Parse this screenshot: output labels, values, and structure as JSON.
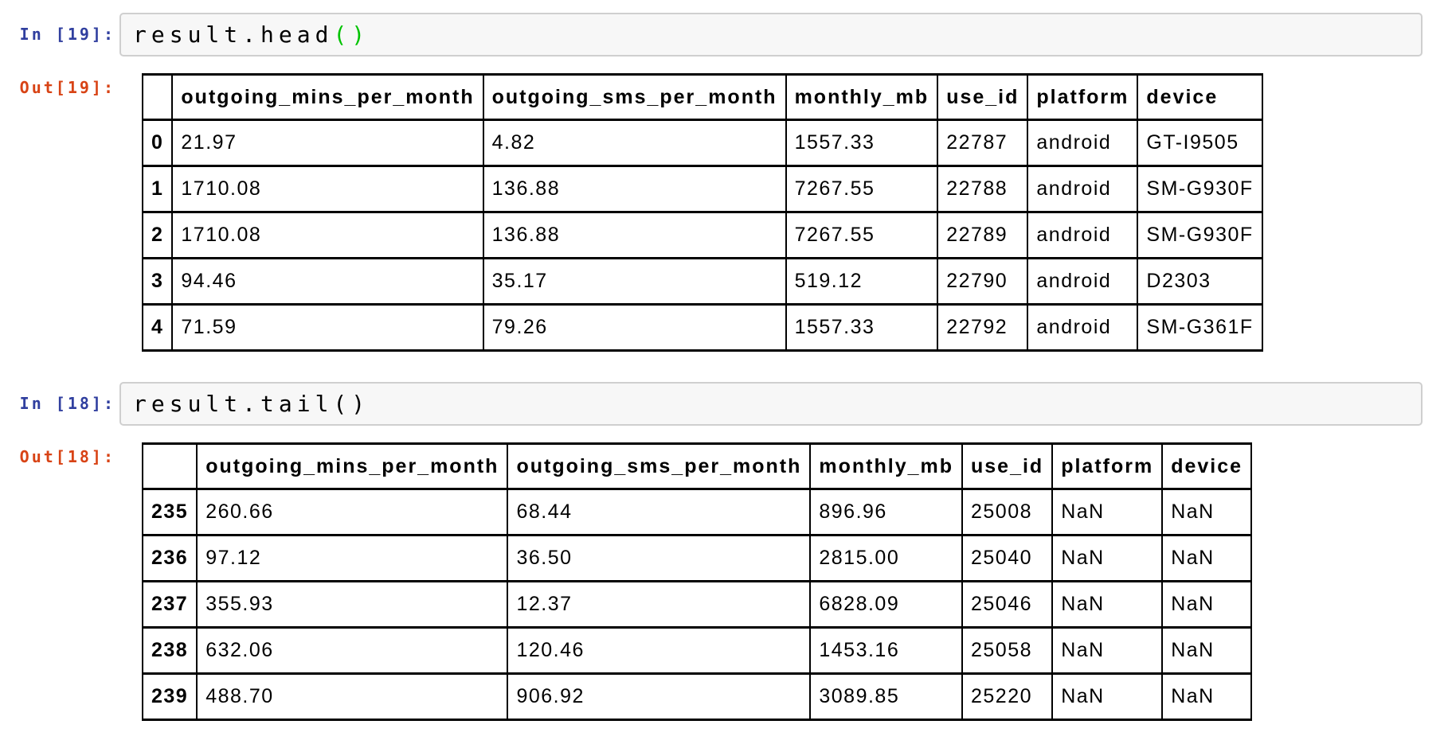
{
  "colors": {
    "in_prompt": "#303f9f",
    "out_prompt": "#d84315",
    "input_bg": "#f7f7f7",
    "input_border": "#cfcfcf",
    "table_border": "#000000",
    "code_text": "#000000",
    "matched_bracket_green": "#00c300"
  },
  "cells": [
    {
      "in_prompt": "In [19]:",
      "out_prompt": "Out[19]:",
      "code_segments": [
        {
          "text": "result.head",
          "color": "#000000"
        },
        {
          "text": "()",
          "color": "#00c300"
        }
      ],
      "table": {
        "columns": [
          "",
          "outgoing_mins_per_month",
          "outgoing_sms_per_month",
          "monthly_mb",
          "use_id",
          "platform",
          "device"
        ],
        "rows": [
          {
            "index": "0",
            "cells": [
              "21.97",
              "4.82",
              "1557.33",
              "22787",
              "android",
              "GT-I9505"
            ]
          },
          {
            "index": "1",
            "cells": [
              "1710.08",
              "136.88",
              "7267.55",
              "22788",
              "android",
              "SM-G930F"
            ]
          },
          {
            "index": "2",
            "cells": [
              "1710.08",
              "136.88",
              "7267.55",
              "22789",
              "android",
              "SM-G930F"
            ]
          },
          {
            "index": "3",
            "cells": [
              "94.46",
              "35.17",
              "519.12",
              "22790",
              "android",
              "D2303"
            ]
          },
          {
            "index": "4",
            "cells": [
              "71.59",
              "79.26",
              "1557.33",
              "22792",
              "android",
              "SM-G361F"
            ]
          }
        ]
      }
    },
    {
      "in_prompt": "In [18]:",
      "out_prompt": "Out[18]:",
      "code_segments": [
        {
          "text": "result.tail()",
          "color": "#000000"
        }
      ],
      "table": {
        "columns": [
          "",
          "outgoing_mins_per_month",
          "outgoing_sms_per_month",
          "monthly_mb",
          "use_id",
          "platform",
          "device"
        ],
        "rows": [
          {
            "index": "235",
            "cells": [
              "260.66",
              "68.44",
              "896.96",
              "25008",
              "NaN",
              "NaN"
            ]
          },
          {
            "index": "236",
            "cells": [
              "97.12",
              "36.50",
              "2815.00",
              "25040",
              "NaN",
              "NaN"
            ]
          },
          {
            "index": "237",
            "cells": [
              "355.93",
              "12.37",
              "6828.09",
              "25046",
              "NaN",
              "NaN"
            ]
          },
          {
            "index": "238",
            "cells": [
              "632.06",
              "120.46",
              "1453.16",
              "25058",
              "NaN",
              "NaN"
            ]
          },
          {
            "index": "239",
            "cells": [
              "488.70",
              "906.92",
              "3089.85",
              "25220",
              "NaN",
              "NaN"
            ]
          }
        ]
      }
    }
  ]
}
